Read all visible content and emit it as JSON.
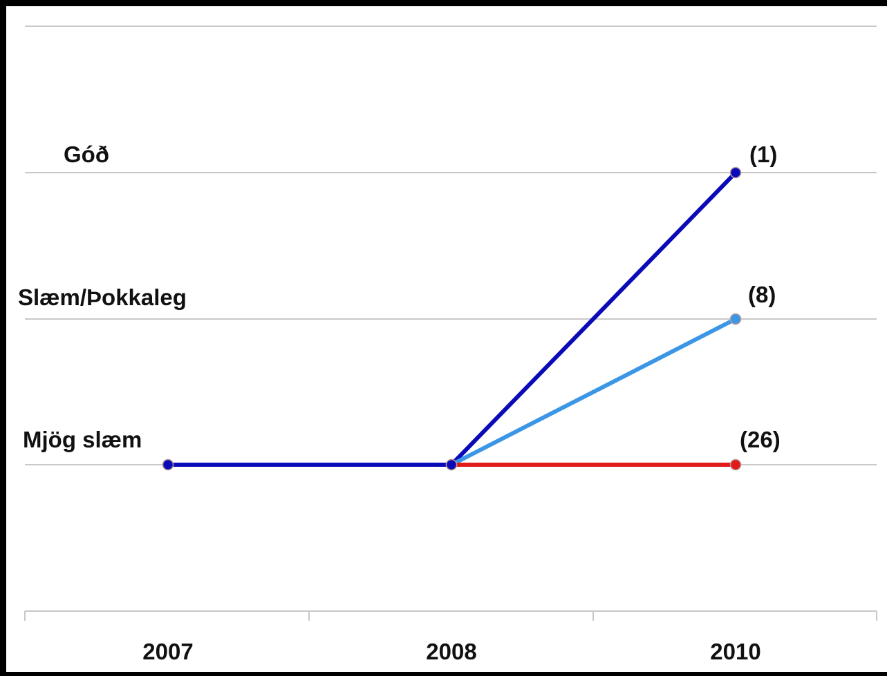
{
  "chart_data": {
    "type": "line",
    "title": "",
    "xlabel": "",
    "ylabel": "",
    "x_categories": [
      "2007",
      "2008",
      "2010"
    ],
    "y_levels": [
      "Mjög slæm",
      "Slæm/Þokkaleg",
      "Góð"
    ],
    "grid": true,
    "series": [
      {
        "points": [
          [
            "2007",
            "Mjög slæm"
          ],
          [
            "2008",
            "Mjög slæm"
          ]
        ],
        "color": "#0a0ab8"
      },
      {
        "points": [
          [
            "2008",
            "Mjög slæm"
          ],
          [
            "2010",
            "Góð"
          ]
        ],
        "color": "#0a0ab8",
        "annotation": "(1)"
      },
      {
        "points": [
          [
            "2008",
            "Mjög slæm"
          ],
          [
            "2010",
            "Slæm/Þokkaleg"
          ]
        ],
        "color": "#3b97e6",
        "annotation": "(8)"
      },
      {
        "points": [
          [
            "2008",
            "Mjög slæm"
          ],
          [
            "2010",
            "Mjög slæm"
          ]
        ],
        "color": "#e11a1a",
        "annotation": "(26)"
      }
    ]
  }
}
